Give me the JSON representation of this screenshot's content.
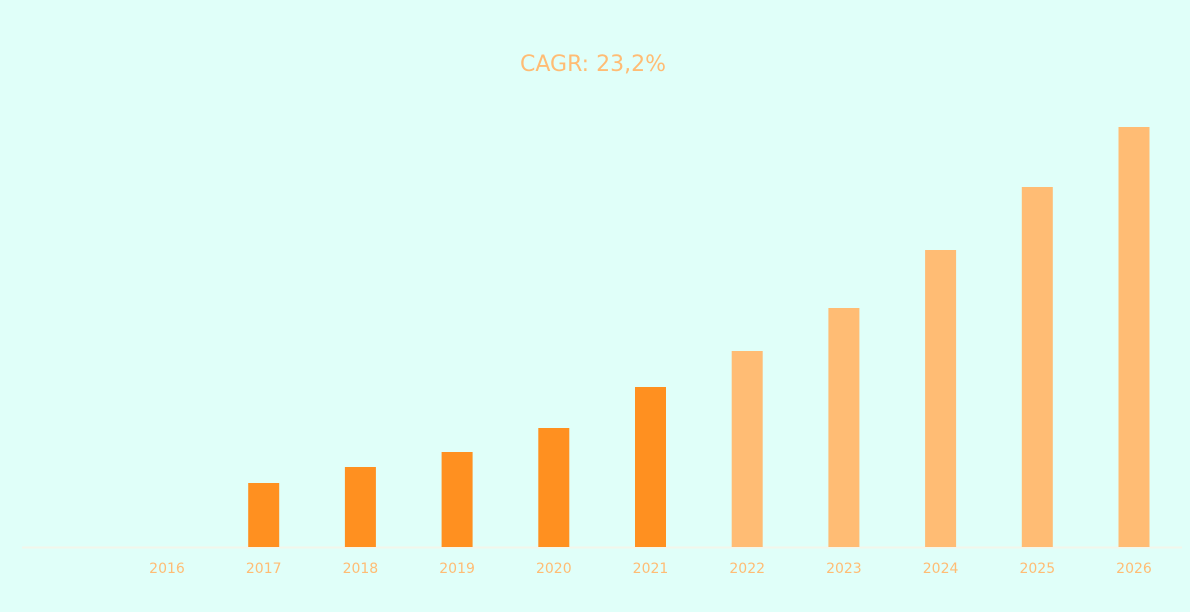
{
  "chart_data": {
    "type": "bar",
    "title": "CAGR: 23,2%",
    "categories": [
      "2016",
      "2017",
      "2018",
      "2019",
      "2020",
      "2021",
      "2022",
      "2023",
      "2024",
      "2025",
      "2026"
    ],
    "values": [
      0,
      64,
      80,
      95,
      119,
      160,
      196,
      239,
      297,
      360,
      420
    ],
    "colors": [
      "#ff9020",
      "#ff9020",
      "#ff9020",
      "#ff9020",
      "#ff9020",
      "#ff9020",
      "#ffbc74",
      "#ffbc74",
      "#ffbc74",
      "#ffbc74",
      "#ffbc74"
    ],
    "ylim": [
      0,
      420
    ]
  }
}
